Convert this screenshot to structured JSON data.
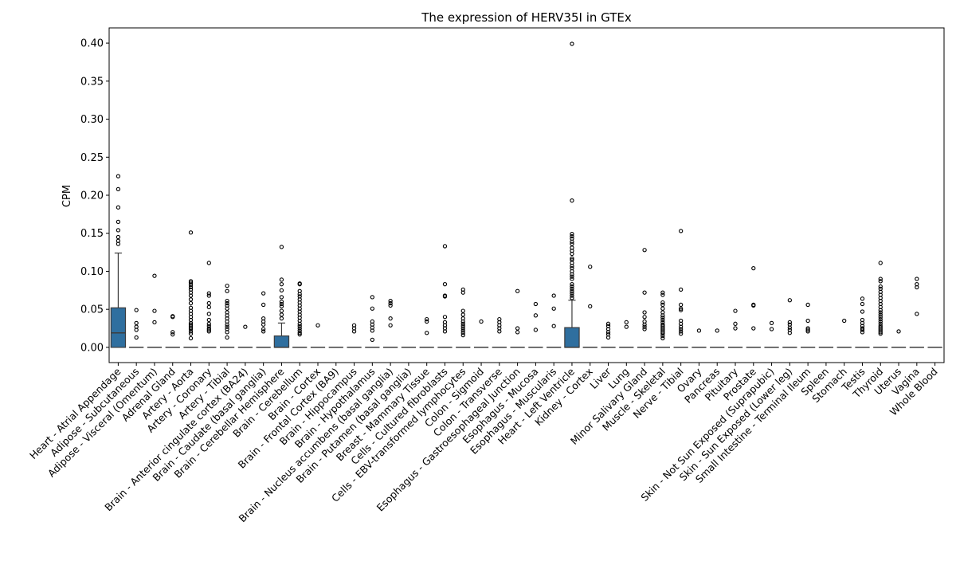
{
  "chart_data": {
    "type": "box",
    "title": "The expression of HERV35I in GTEx",
    "xlabel": "",
    "ylabel": "CPM",
    "ylim": [
      -0.02,
      0.42
    ],
    "yticks": [
      0.0,
      0.05,
      0.1,
      0.15,
      0.2,
      0.25,
      0.3,
      0.35,
      0.4
    ],
    "ytick_labels": [
      "0.00",
      "0.05",
      "0.10",
      "0.15",
      "0.20",
      "0.25",
      "0.30",
      "0.35",
      "0.40"
    ],
    "grid": false,
    "box_color": "#2f6f9f",
    "categories": [
      "Heart - Atrial Appendage",
      "Adipose - Subcutaneous",
      "Adipose - Visceral (Omentum)",
      "Adrenal Gland",
      "Artery - Aorta",
      "Artery - Coronary",
      "Artery - Tibial",
      "Brain - Anterior cingulate cortex (BA24)",
      "Brain - Caudate (basal ganglia)",
      "Brain - Cerebellar Hemisphere",
      "Brain - Cerebellum",
      "Brain - Cortex",
      "Brain - Frontal Cortex (BA9)",
      "Brain - Hippocampus",
      "Brain - Hypothalamus",
      "Brain - Nucleus accumbens (basal ganglia)",
      "Brain - Putamen (basal ganglia)",
      "Breast - Mammary Tissue",
      "Cells - Cultured fibroblasts",
      "Cells - EBV-transformed lymphocytes",
      "Colon - Sigmoid",
      "Colon - Transverse",
      "Esophagus - Gastroesophageal Junction",
      "Esophagus - Mucosa",
      "Esophagus - Muscularis",
      "Heart - Left Ventricle",
      "Kidney - Cortex",
      "Liver",
      "Lung",
      "Minor Salivary Gland",
      "Muscle - Skeletal",
      "Nerve - Tibial",
      "Ovary",
      "Pancreas",
      "Pituitary",
      "Prostate",
      "Skin - Not Sun Exposed (Suprapubic)",
      "Skin - Sun Exposed (Lower leg)",
      "Small Intestine - Terminal Ileum",
      "Spleen",
      "Stomach",
      "Testis",
      "Thyroid",
      "Uterus",
      "Vagina",
      "Whole Blood"
    ],
    "boxes": [
      {
        "q1": 0.0,
        "median": 0.019,
        "q3": 0.052,
        "whisker_low": 0.0,
        "whisker_high": 0.124
      },
      {
        "q1": 0,
        "median": 0,
        "q3": 0,
        "whisker_low": 0,
        "whisker_high": 0
      },
      {
        "q1": 0,
        "median": 0,
        "q3": 0,
        "whisker_low": 0,
        "whisker_high": 0
      },
      {
        "q1": 0,
        "median": 0,
        "q3": 0,
        "whisker_low": 0,
        "whisker_high": 0
      },
      {
        "q1": 0,
        "median": 0,
        "q3": 0,
        "whisker_low": 0,
        "whisker_high": 0
      },
      {
        "q1": 0,
        "median": 0,
        "q3": 0,
        "whisker_low": 0,
        "whisker_high": 0
      },
      {
        "q1": 0,
        "median": 0,
        "q3": 0,
        "whisker_low": 0,
        "whisker_high": 0
      },
      {
        "q1": 0,
        "median": 0,
        "q3": 0,
        "whisker_low": 0,
        "whisker_high": 0
      },
      {
        "q1": 0,
        "median": 0,
        "q3": 0,
        "whisker_low": 0,
        "whisker_high": 0
      },
      {
        "q1": 0.0,
        "median": 0.0,
        "q3": 0.015,
        "whisker_low": 0.0,
        "whisker_high": 0.032
      },
      {
        "q1": 0,
        "median": 0,
        "q3": 0,
        "whisker_low": 0,
        "whisker_high": 0
      },
      {
        "q1": 0,
        "median": 0,
        "q3": 0,
        "whisker_low": 0,
        "whisker_high": 0
      },
      {
        "q1": 0,
        "median": 0,
        "q3": 0,
        "whisker_low": 0,
        "whisker_high": 0
      },
      {
        "q1": 0,
        "median": 0,
        "q3": 0,
        "whisker_low": 0,
        "whisker_high": 0
      },
      {
        "q1": 0,
        "median": 0,
        "q3": 0,
        "whisker_low": 0,
        "whisker_high": 0
      },
      {
        "q1": 0,
        "median": 0,
        "q3": 0,
        "whisker_low": 0,
        "whisker_high": 0
      },
      {
        "q1": 0,
        "median": 0,
        "q3": 0,
        "whisker_low": 0,
        "whisker_high": 0
      },
      {
        "q1": 0,
        "median": 0,
        "q3": 0,
        "whisker_low": 0,
        "whisker_high": 0
      },
      {
        "q1": 0,
        "median": 0,
        "q3": 0,
        "whisker_low": 0,
        "whisker_high": 0
      },
      {
        "q1": 0,
        "median": 0,
        "q3": 0,
        "whisker_low": 0,
        "whisker_high": 0
      },
      {
        "q1": 0,
        "median": 0,
        "q3": 0,
        "whisker_low": 0,
        "whisker_high": 0
      },
      {
        "q1": 0,
        "median": 0,
        "q3": 0,
        "whisker_low": 0,
        "whisker_high": 0
      },
      {
        "q1": 0,
        "median": 0,
        "q3": 0,
        "whisker_low": 0,
        "whisker_high": 0
      },
      {
        "q1": 0,
        "median": 0,
        "q3": 0,
        "whisker_low": 0,
        "whisker_high": 0
      },
      {
        "q1": 0,
        "median": 0,
        "q3": 0,
        "whisker_low": 0,
        "whisker_high": 0
      },
      {
        "q1": 0.0,
        "median": 0.0,
        "q3": 0.026,
        "whisker_low": 0.0,
        "whisker_high": 0.062
      },
      {
        "q1": 0,
        "median": 0,
        "q3": 0,
        "whisker_low": 0,
        "whisker_high": 0
      },
      {
        "q1": 0,
        "median": 0,
        "q3": 0,
        "whisker_low": 0,
        "whisker_high": 0
      },
      {
        "q1": 0,
        "median": 0,
        "q3": 0,
        "whisker_low": 0,
        "whisker_high": 0
      },
      {
        "q1": 0,
        "median": 0,
        "q3": 0,
        "whisker_low": 0,
        "whisker_high": 0
      },
      {
        "q1": 0,
        "median": 0,
        "q3": 0,
        "whisker_low": 0,
        "whisker_high": 0
      },
      {
        "q1": 0,
        "median": 0,
        "q3": 0,
        "whisker_low": 0,
        "whisker_high": 0
      },
      {
        "q1": 0,
        "median": 0,
        "q3": 0,
        "whisker_low": 0,
        "whisker_high": 0
      },
      {
        "q1": 0,
        "median": 0,
        "q3": 0,
        "whisker_low": 0,
        "whisker_high": 0
      },
      {
        "q1": 0,
        "median": 0,
        "q3": 0,
        "whisker_low": 0,
        "whisker_high": 0
      },
      {
        "q1": 0,
        "median": 0,
        "q3": 0,
        "whisker_low": 0,
        "whisker_high": 0
      },
      {
        "q1": 0,
        "median": 0,
        "q3": 0,
        "whisker_low": 0,
        "whisker_high": 0
      },
      {
        "q1": 0,
        "median": 0,
        "q3": 0,
        "whisker_low": 0,
        "whisker_high": 0
      },
      {
        "q1": 0,
        "median": 0,
        "q3": 0,
        "whisker_low": 0,
        "whisker_high": 0
      },
      {
        "q1": 0,
        "median": 0,
        "q3": 0,
        "whisker_low": 0,
        "whisker_high": 0
      },
      {
        "q1": 0,
        "median": 0,
        "q3": 0,
        "whisker_low": 0,
        "whisker_high": 0
      },
      {
        "q1": 0,
        "median": 0,
        "q3": 0,
        "whisker_low": 0,
        "whisker_high": 0
      },
      {
        "q1": 0,
        "median": 0,
        "q3": 0,
        "whisker_low": 0,
        "whisker_high": 0
      },
      {
        "q1": 0,
        "median": 0,
        "q3": 0,
        "whisker_low": 0,
        "whisker_high": 0
      },
      {
        "q1": 0,
        "median": 0,
        "q3": 0,
        "whisker_low": 0,
        "whisker_high": 0
      },
      {
        "q1": 0,
        "median": 0,
        "q3": 0,
        "whisker_low": 0,
        "whisker_high": 0
      }
    ],
    "outliers": [
      [
        0.225,
        0.208,
        0.184,
        0.165,
        0.154,
        0.145,
        0.14,
        0.136
      ],
      [
        0.049,
        0.032,
        0.027,
        0.023,
        0.013
      ],
      [
        0.094,
        0.048,
        0.033
      ],
      [
        0.041,
        0.04,
        0.02,
        0.017
      ],
      [
        0.151,
        0.087,
        0.085,
        0.082,
        0.079,
        0.076,
        0.072,
        0.068,
        0.063,
        0.058,
        0.052,
        0.048,
        0.044,
        0.04,
        0.036,
        0.032,
        0.03,
        0.028,
        0.026,
        0.024,
        0.021,
        0.018,
        0.012
      ],
      [
        0.111,
        0.071,
        0.068,
        0.058,
        0.053,
        0.044,
        0.036,
        0.031,
        0.028,
        0.025,
        0.023,
        0.021
      ],
      [
        0.081,
        0.074,
        0.061,
        0.058,
        0.055,
        0.051,
        0.046,
        0.042,
        0.038,
        0.034,
        0.03,
        0.027,
        0.024,
        0.02,
        0.013
      ],
      [
        0.027
      ],
      [
        0.071,
        0.056,
        0.038,
        0.034,
        0.03,
        0.024,
        0.021
      ],
      [
        0.132,
        0.089,
        0.083,
        0.075,
        0.066,
        0.06,
        0.057,
        0.054,
        0.048,
        0.043,
        0.038
      ],
      [
        0.084,
        0.083,
        0.074,
        0.07,
        0.067,
        0.063,
        0.059,
        0.055,
        0.051,
        0.047,
        0.043,
        0.039,
        0.035,
        0.031,
        0.028,
        0.025,
        0.022,
        0.019,
        0.017
      ],
      [
        0.029
      ],
      [],
      [
        0.029,
        0.025,
        0.021
      ],
      [
        0.066,
        0.051,
        0.034,
        0.03,
        0.026,
        0.022,
        0.01
      ],
      [
        0.061,
        0.058,
        0.055,
        0.038,
        0.029
      ],
      [],
      [
        0.037,
        0.034,
        0.019
      ],
      [
        0.133,
        0.083,
        0.068,
        0.067,
        0.04,
        0.033,
        0.029,
        0.025,
        0.021
      ],
      [
        0.076,
        0.072,
        0.048,
        0.043,
        0.038,
        0.034,
        0.031,
        0.028,
        0.025,
        0.022,
        0.019,
        0.016
      ],
      [
        0.034
      ],
      [
        0.037,
        0.033,
        0.029,
        0.025,
        0.021
      ],
      [
        0.074,
        0.025,
        0.02
      ],
      [
        0.057,
        0.042,
        0.023
      ],
      [
        0.068,
        0.051,
        0.028
      ],
      [
        0.399,
        0.193,
        0.149,
        0.146,
        0.143,
        0.139,
        0.136,
        0.131,
        0.127,
        0.123,
        0.117,
        0.115,
        0.111,
        0.107,
        0.104,
        0.1,
        0.096,
        0.093,
        0.09,
        0.083,
        0.08,
        0.077,
        0.074,
        0.071,
        0.068,
        0.065
      ],
      [
        0.106,
        0.054
      ],
      [
        0.031,
        0.028,
        0.024,
        0.02,
        0.017,
        0.013
      ],
      [
        0.033,
        0.027
      ],
      [
        0.128,
        0.072,
        0.046,
        0.04,
        0.034,
        0.03,
        0.027,
        0.024
      ],
      [
        0.072,
        0.069,
        0.059,
        0.056,
        0.051,
        0.046,
        0.042,
        0.039,
        0.036,
        0.033,
        0.03,
        0.028,
        0.026,
        0.024,
        0.022,
        0.02,
        0.018,
        0.015,
        0.012
      ],
      [
        0.153,
        0.076,
        0.056,
        0.051,
        0.049,
        0.035,
        0.031,
        0.027,
        0.024,
        0.021,
        0.018
      ],
      [
        0.022
      ],
      [
        0.022
      ],
      [
        0.048,
        0.031,
        0.025
      ],
      [
        0.104,
        0.056,
        0.055,
        0.025
      ],
      [
        0.032,
        0.024
      ],
      [
        0.062,
        0.033,
        0.03,
        0.026,
        0.023,
        0.019
      ],
      [
        0.056,
        0.035,
        0.025,
        0.023,
        0.021
      ],
      [],
      [
        0.035
      ],
      [
        0.064,
        0.057,
        0.047,
        0.036,
        0.032,
        0.028,
        0.025,
        0.023,
        0.02
      ],
      [
        0.111,
        0.09,
        0.087,
        0.08,
        0.077,
        0.073,
        0.069,
        0.065,
        0.061,
        0.057,
        0.053,
        0.049,
        0.046,
        0.043,
        0.04,
        0.037,
        0.034,
        0.031,
        0.028,
        0.026,
        0.024,
        0.022,
        0.02,
        0.018
      ],
      [
        0.021
      ],
      [
        0.09,
        0.083,
        0.079,
        0.044
      ],
      []
    ]
  }
}
